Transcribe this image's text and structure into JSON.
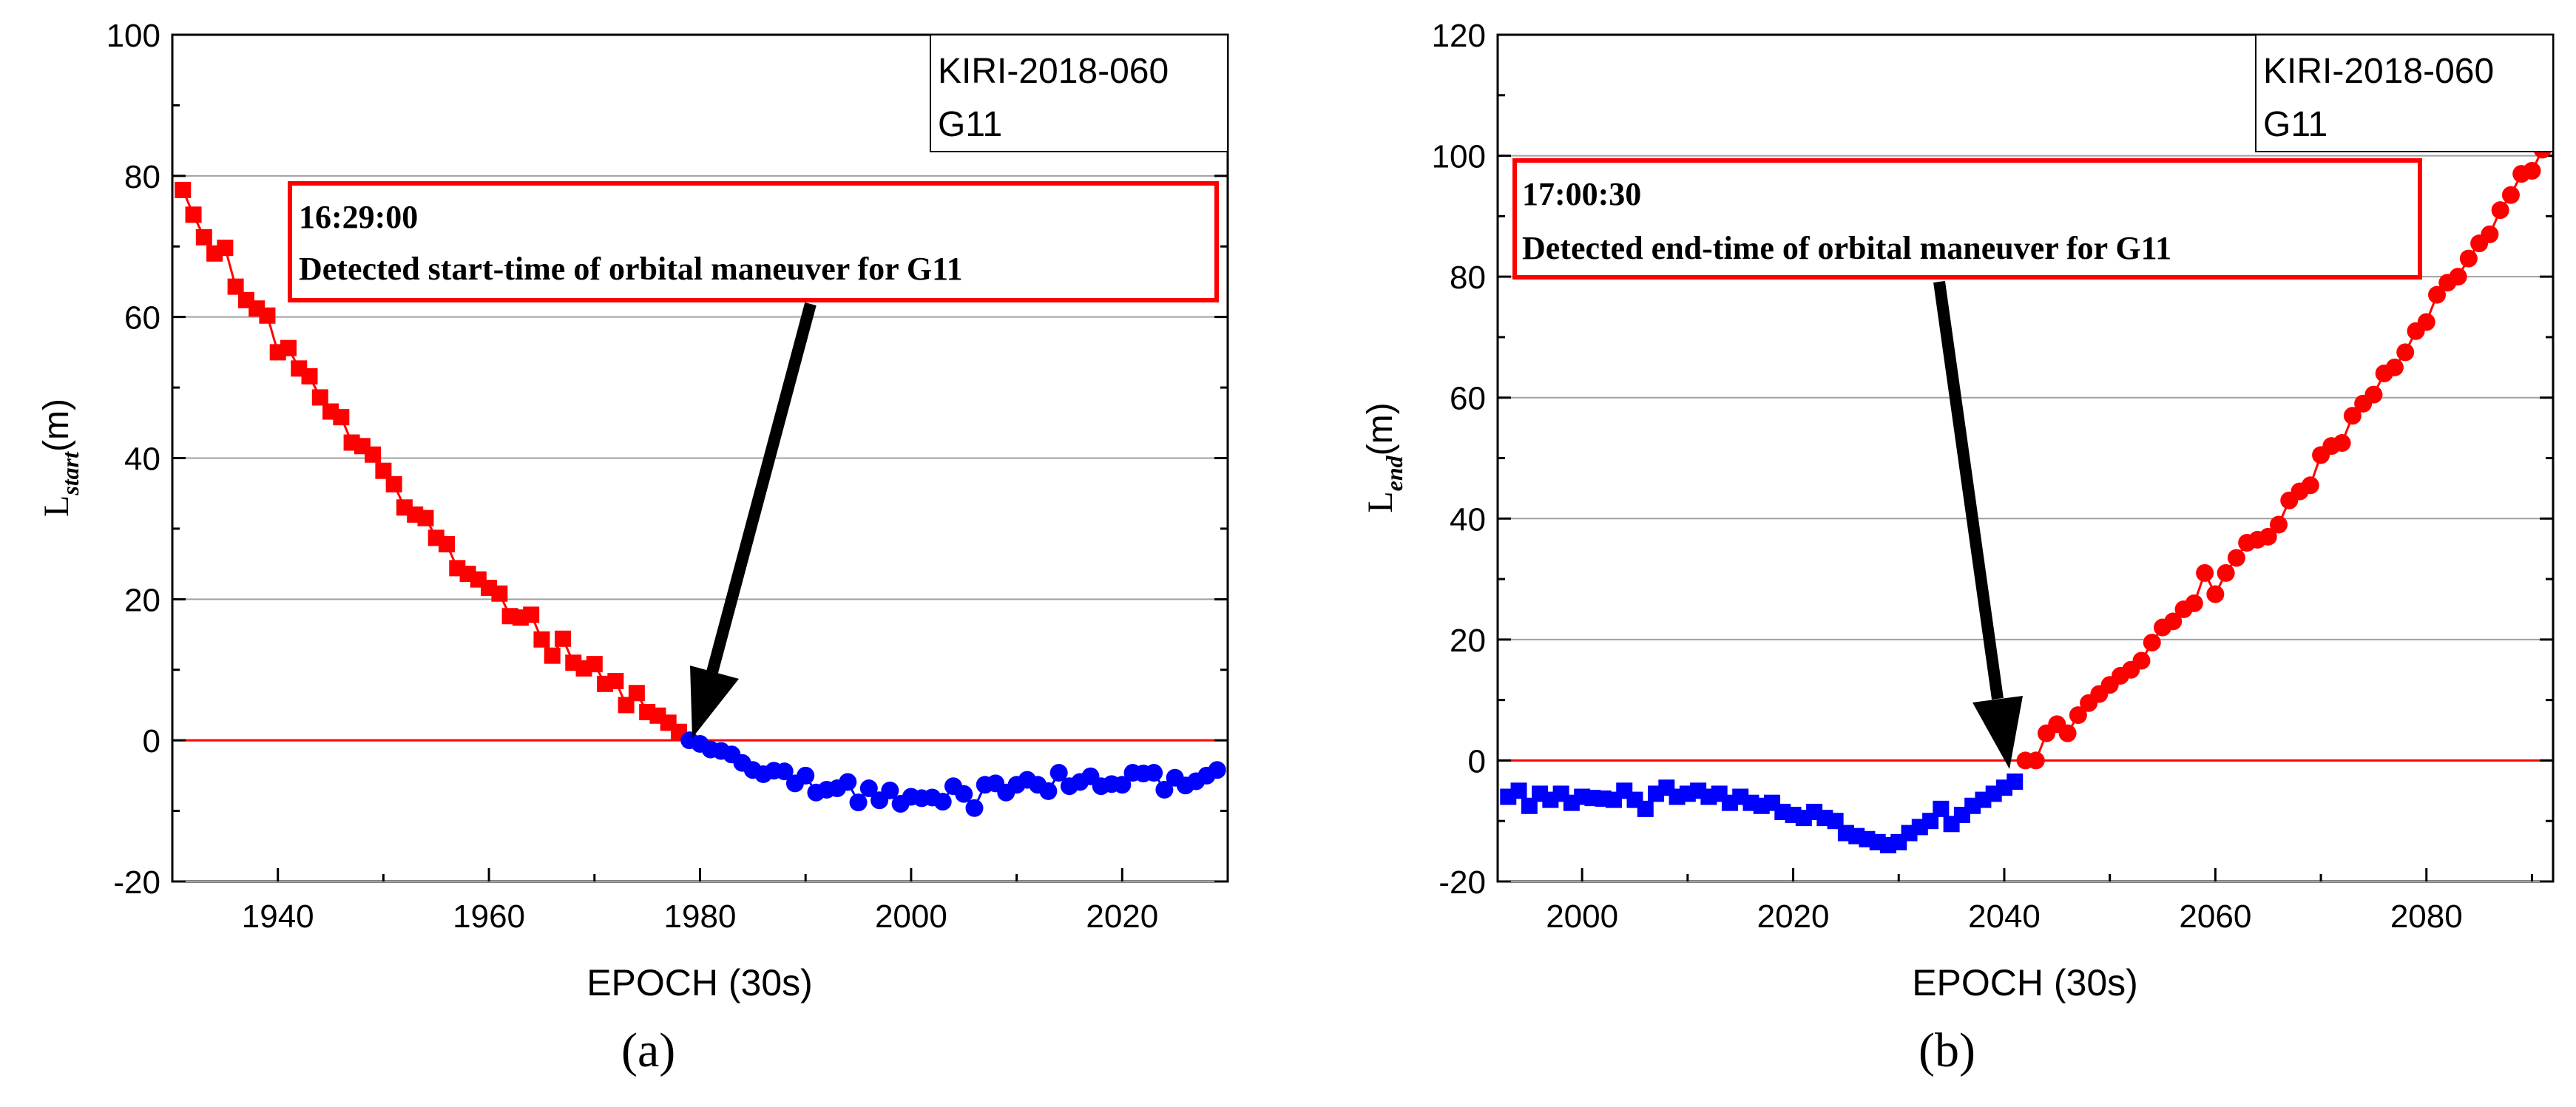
{
  "chart_data": [
    {
      "type": "scatter",
      "panel_label": "(a)",
      "xlabel": "EPOCH (30s)",
      "ylabel": {
        "base": "L",
        "sub": "start",
        "unit": "(m)"
      },
      "xlim": [
        1930,
        2030
      ],
      "ylim": [
        -20,
        100
      ],
      "xticks": [
        1940,
        1960,
        1980,
        2000,
        2020
      ],
      "yticks": [
        -20,
        0,
        20,
        40,
        60,
        80,
        100
      ],
      "gridlines_y": [
        -20,
        20,
        40,
        60,
        80
      ],
      "zero_line_color": "#ff0000",
      "legend": [
        "KIRI-2018-060",
        "G11"
      ],
      "legend_position": "top-right",
      "annotation": {
        "line1": "16:29:00",
        "line2": "Detected start-time of  orbital maneuver for G11",
        "arrow_target": [
          1978,
          0
        ]
      },
      "series": [
        {
          "color": "#ff0000",
          "marker": "square",
          "connected": true,
          "x": [
            1931,
            1932,
            1933,
            1934,
            1935,
            1936,
            1937,
            1938,
            1939,
            1940,
            1941,
            1942,
            1943,
            1944,
            1945,
            1946,
            1947,
            1948,
            1949,
            1950,
            1951,
            1952,
            1953,
            1954,
            1955,
            1956,
            1957,
            1958,
            1959,
            1960,
            1961,
            1962,
            1963,
            1964,
            1965,
            1966,
            1967,
            1968,
            1969,
            1970,
            1971,
            1972,
            1973,
            1974,
            1975,
            1976,
            1977,
            1978
          ],
          "y": [
            78,
            74.5,
            71.3,
            69,
            69.8,
            64.3,
            62.4,
            61.2,
            60.2,
            55,
            55.6,
            52.7,
            51.6,
            48.6,
            46.6,
            45.8,
            42.2,
            41.7,
            40.5,
            38.2,
            36.3,
            33,
            32,
            31.5,
            28.7,
            27.8,
            24.4,
            23.6,
            22.8,
            21.6,
            20.8,
            17.6,
            17.4,
            17.8,
            14.3,
            12,
            14.4,
            11,
            10.2,
            10.8,
            8,
            8.4,
            5,
            6.7,
            4,
            3.5,
            2.5,
            1.2
          ]
        },
        {
          "color": "#0000ff",
          "marker": "circle",
          "connected": true,
          "x": [
            1979,
            1980,
            1981,
            1982,
            1983,
            1984,
            1985,
            1986,
            1987,
            1988,
            1989,
            1990,
            1991,
            1992,
            1993,
            1994,
            1995,
            1996,
            1997,
            1998,
            1999,
            2000,
            2001,
            2002,
            2003,
            2004,
            2005,
            2006,
            2007,
            2008,
            2009,
            2010,
            2011,
            2012,
            2013,
            2014,
            2015,
            2016,
            2017,
            2018,
            2019,
            2020,
            2021,
            2022,
            2023,
            2024,
            2025,
            2026,
            2027,
            2028,
            2029
          ],
          "y": [
            0,
            -0.5,
            -1.3,
            -1.5,
            -2,
            -3.2,
            -4.2,
            -4.8,
            -4.3,
            -4.4,
            -6.1,
            -5,
            -7.4,
            -7,
            -6.8,
            -5.9,
            -8.8,
            -6.8,
            -8.5,
            -7.1,
            -9,
            -8,
            -8.2,
            -8.1,
            -8.7,
            -6.5,
            -7.6,
            -9.6,
            -6.3,
            -6.1,
            -7.4,
            -6.3,
            -5.6,
            -6.3,
            -7.2,
            -4.6,
            -6.5,
            -5.9,
            -5.1,
            -6.5,
            -6.2,
            -6.3,
            -4.6,
            -4.7,
            -4.6,
            -7,
            -5.3,
            -6.4,
            -5.8,
            -5,
            -4.2
          ]
        }
      ]
    },
    {
      "type": "scatter",
      "panel_label": "(b)",
      "xlabel": "EPOCH (30s)",
      "ylabel": {
        "base": "L",
        "sub": "end",
        "unit": "(m)"
      },
      "xlim": [
        1992,
        2092
      ],
      "ylim": [
        -20,
        120
      ],
      "xticks": [
        2000,
        2020,
        2040,
        2060,
        2080
      ],
      "yticks": [
        -20,
        0,
        20,
        40,
        60,
        80,
        100,
        120
      ],
      "gridlines_y": [
        -20,
        20,
        40,
        60,
        80,
        100
      ],
      "zero_line_color": "#ff0000",
      "legend": [
        "KIRI-2018-060",
        "G11"
      ],
      "legend_position": "top-right",
      "annotation": {
        "line1": "17:00:30",
        "line2": "Detected end-time of  orbital maneuver for G11",
        "arrow_target": [
          2041,
          0
        ]
      },
      "series": [
        {
          "color": "#0000ff",
          "marker": "square",
          "connected": true,
          "x": [
            1993,
            1994,
            1995,
            1996,
            1997,
            1998,
            1999,
            2000,
            2001,
            2002,
            2003,
            2004,
            2005,
            2006,
            2007,
            2008,
            2009,
            2010,
            2011,
            2012,
            2013,
            2014,
            2015,
            2016,
            2017,
            2018,
            2019,
            2020,
            2021,
            2022,
            2023,
            2024,
            2025,
            2026,
            2027,
            2028,
            2029,
            2030,
            2031,
            2032,
            2033,
            2034,
            2035,
            2036,
            2037,
            2038,
            2039,
            2040,
            2041
          ],
          "y": [
            -6,
            -5,
            -7.5,
            -5.5,
            -6.5,
            -5.5,
            -7,
            -6,
            -6.2,
            -6.3,
            -6.5,
            -5,
            -6.5,
            -8,
            -5.5,
            -4.5,
            -6,
            -5.5,
            -5,
            -6,
            -5.5,
            -7,
            -6,
            -7,
            -7.5,
            -7,
            -8.5,
            -9,
            -9.5,
            -8.5,
            -9.5,
            -10,
            -12,
            -12.5,
            -13,
            -13.5,
            -14,
            -13.5,
            -12,
            -11,
            -10,
            -8,
            -10.5,
            -9,
            -7.5,
            -6.5,
            -5.5,
            -4.5,
            -3.5
          ]
        },
        {
          "color": "#ff0000",
          "marker": "circle",
          "connected": true,
          "x": [
            2042,
            2043,
            2044,
            2045,
            2046,
            2047,
            2048,
            2049,
            2050,
            2051,
            2052,
            2053,
            2054,
            2055,
            2056,
            2057,
            2058,
            2059,
            2060,
            2061,
            2062,
            2063,
            2064,
            2065,
            2066,
            2067,
            2068,
            2069,
            2070,
            2071,
            2072,
            2073,
            2074,
            2075,
            2076,
            2077,
            2078,
            2079,
            2080,
            2081,
            2082,
            2083,
            2084,
            2085,
            2086,
            2087,
            2088,
            2089,
            2090,
            2091
          ],
          "y": [
            0,
            0,
            4.5,
            6,
            4.5,
            7.5,
            9.5,
            11,
            12.5,
            14,
            15,
            16.5,
            19.5,
            22,
            23,
            25,
            26,
            31,
            27.5,
            31,
            33.5,
            36,
            36.5,
            37,
            39,
            43,
            44.5,
            45.5,
            50.5,
            52,
            52.5,
            57,
            59,
            60.5,
            64,
            65,
            67.5,
            71,
            72.5,
            77,
            79,
            80,
            83,
            85.5,
            87,
            91,
            93.5,
            97,
            97.5,
            101
          ]
        }
      ]
    }
  ]
}
